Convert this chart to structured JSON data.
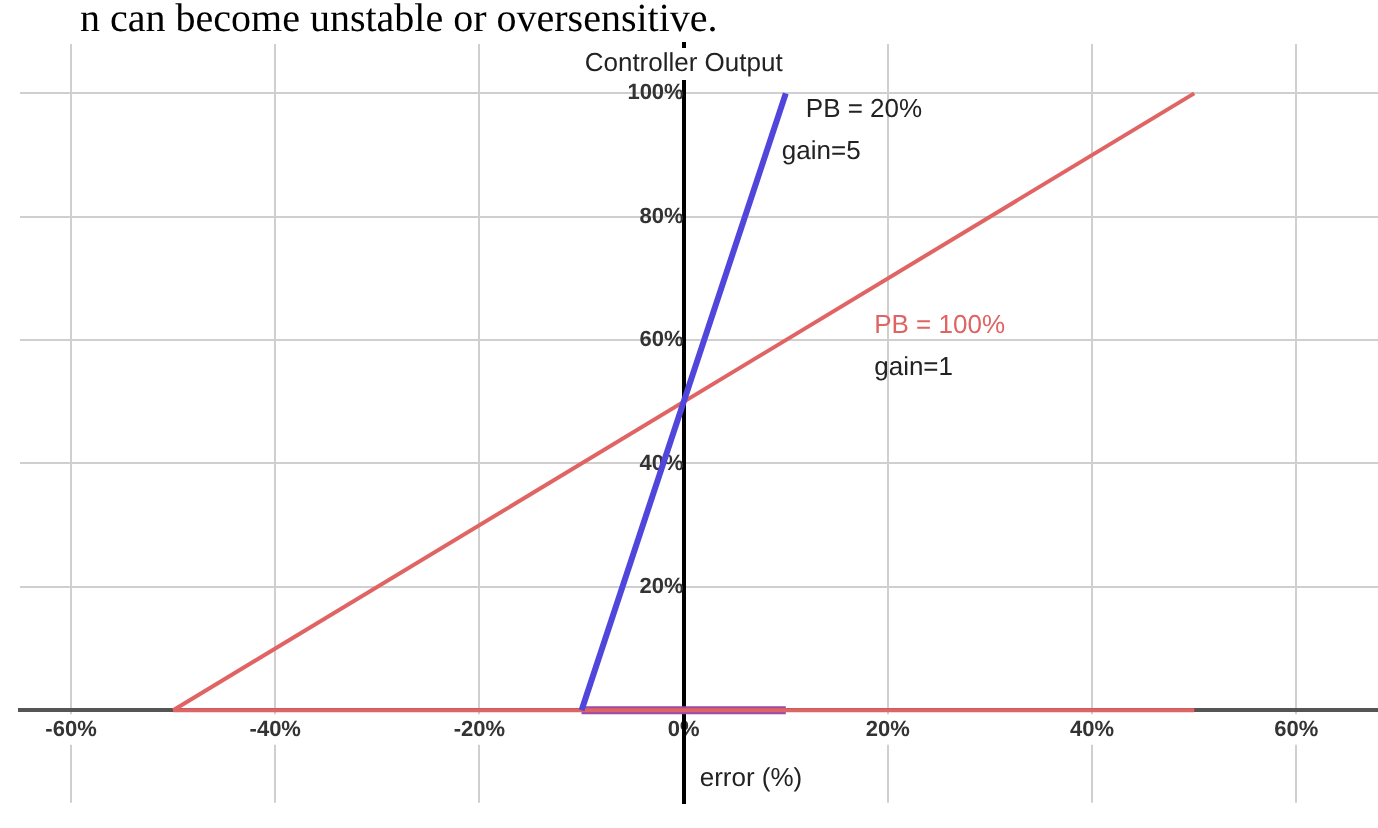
{
  "chart_data": {
    "type": "line",
    "title": "n can become unstable or oversensitive.",
    "xlabel": "error (%)",
    "ylabel": "Controller Output",
    "xlim": [
      -65,
      68
    ],
    "ylim": [
      -15,
      108
    ],
    "xticks": [
      {
        "value": -60,
        "label": "-60%"
      },
      {
        "value": -40,
        "label": "-40%"
      },
      {
        "value": -20,
        "label": "-20%"
      },
      {
        "value": 0,
        "label": "0%"
      },
      {
        "value": 20,
        "label": "20%"
      },
      {
        "value": 40,
        "label": "40%"
      },
      {
        "value": 60,
        "label": "60%"
      }
    ],
    "yticks": [
      {
        "value": 20,
        "label": "20%"
      },
      {
        "value": 40,
        "label": "40%"
      },
      {
        "value": 60,
        "label": "60%"
      },
      {
        "value": 80,
        "label": "80%"
      },
      {
        "value": 100,
        "label": "100%"
      }
    ],
    "grid": true,
    "legend": false,
    "marker": "none",
    "line_style": "solid",
    "series": [
      {
        "name": "PB = 20%",
        "color": "#5046dc",
        "x": [
          -10,
          10
        ],
        "values": [
          0,
          100
        ]
      },
      {
        "name": "PB = 100%",
        "color": "#e06464",
        "x": [
          -50,
          50
        ],
        "values": [
          0,
          100
        ]
      },
      {
        "color": "#e06464",
        "x": [
          -50,
          50
        ],
        "values": [
          0,
          0
        ]
      },
      {
        "color": "#9a4aa8",
        "x": [
          -10,
          10
        ],
        "values": [
          0,
          0
        ]
      }
    ],
    "annotations": [
      "gain=5",
      "gain=1"
    ]
  }
}
